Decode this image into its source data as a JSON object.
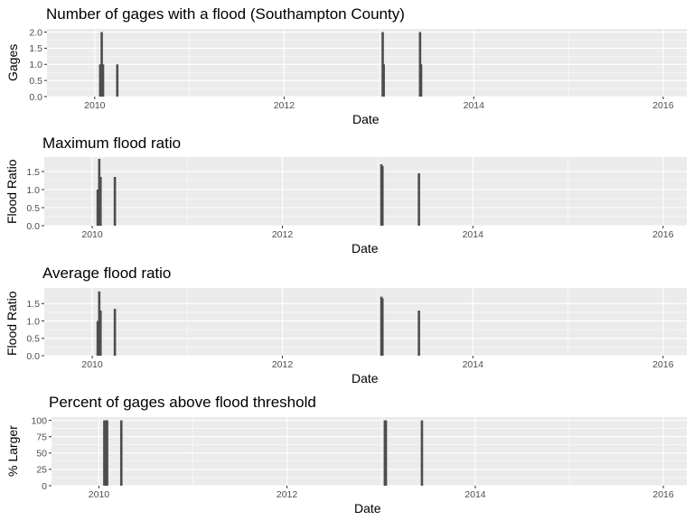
{
  "chart_data": [
    {
      "type": "bar",
      "title": "Number of gages with a flood (Southampton County)",
      "xlabel": "Date",
      "ylabel": "Gages",
      "x_ticks": [
        "2010",
        "2012",
        "2014",
        "2016"
      ],
      "y_ticks": [
        "0.0",
        "0.5",
        "1.0",
        "1.5",
        "2.0"
      ],
      "xlim": [
        "2009-07-01",
        "2016-04-01"
      ],
      "ylim": [
        0,
        2.1
      ],
      "grid": true,
      "background": "#ebebeb",
      "bar_color": "#4d4d4d",
      "points": [
        {
          "x": "2010-01-22",
          "y": 1
        },
        {
          "x": "2010-01-28",
          "y": 2
        },
        {
          "x": "2010-02-02",
          "y": 1
        },
        {
          "x": "2010-03-29",
          "y": 1
        },
        {
          "x": "2013-01-15",
          "y": 2
        },
        {
          "x": "2013-01-19",
          "y": 1
        },
        {
          "x": "2013-06-08",
          "y": 2
        },
        {
          "x": "2013-06-12",
          "y": 1
        }
      ]
    },
    {
      "type": "bar",
      "title": "Maximum flood ratio",
      "xlabel": "Date",
      "ylabel": "Flood Ratio",
      "x_ticks": [
        "2010",
        "2012",
        "2014",
        "2016"
      ],
      "y_ticks": [
        "0.0",
        "0.5",
        "1.0",
        "1.5"
      ],
      "xlim": [
        "2009-07-01",
        "2016-04-01"
      ],
      "ylim": [
        0,
        1.9
      ],
      "grid": true,
      "background": "#ebebeb",
      "bar_color": "#4d4d4d",
      "points": [
        {
          "x": "2010-01-22",
          "y": 1.0
        },
        {
          "x": "2010-01-28",
          "y": 1.85
        },
        {
          "x": "2010-02-02",
          "y": 1.35
        },
        {
          "x": "2010-03-29",
          "y": 1.35
        },
        {
          "x": "2013-01-15",
          "y": 1.7
        },
        {
          "x": "2013-01-19",
          "y": 1.65
        },
        {
          "x": "2013-06-08",
          "y": 1.45
        }
      ]
    },
    {
      "type": "bar",
      "title": "Average flood ratio",
      "xlabel": "Date",
      "ylabel": "Flood Ratio",
      "x_ticks": [
        "2010",
        "2012",
        "2014",
        "2016"
      ],
      "y_ticks": [
        "0.0",
        "0.5",
        "1.0",
        "1.5"
      ],
      "xlim": [
        "2009-07-01",
        "2016-04-01"
      ],
      "ylim": [
        0,
        1.95
      ],
      "grid": true,
      "background": "#ebebeb",
      "bar_color": "#4d4d4d",
      "points": [
        {
          "x": "2010-01-22",
          "y": 1.0
        },
        {
          "x": "2010-01-28",
          "y": 1.85
        },
        {
          "x": "2010-02-02",
          "y": 1.3
        },
        {
          "x": "2010-03-29",
          "y": 1.35
        },
        {
          "x": "2013-01-15",
          "y": 1.7
        },
        {
          "x": "2013-01-19",
          "y": 1.65
        },
        {
          "x": "2013-06-08",
          "y": 1.3
        }
      ]
    },
    {
      "type": "bar",
      "title": "Percent of gages above flood threshold",
      "xlabel": "Date",
      "ylabel": "% Larger",
      "x_ticks": [
        "2010",
        "2012",
        "2014",
        "2016"
      ],
      "y_ticks": [
        "0",
        "25",
        "50",
        "75",
        "100"
      ],
      "xlim": [
        "2009-07-01",
        "2016-04-01"
      ],
      "ylim": [
        0,
        105
      ],
      "grid": true,
      "background": "#ebebeb",
      "bar_color": "#4d4d4d",
      "points": [
        {
          "x": "2010-01-22",
          "y": 100
        },
        {
          "x": "2010-01-28",
          "y": 100
        },
        {
          "x": "2010-02-02",
          "y": 100
        },
        {
          "x": "2010-03-29",
          "y": 100
        },
        {
          "x": "2013-01-15",
          "y": 100
        },
        {
          "x": "2013-01-19",
          "y": 100
        },
        {
          "x": "2013-06-08",
          "y": 100
        }
      ]
    }
  ]
}
